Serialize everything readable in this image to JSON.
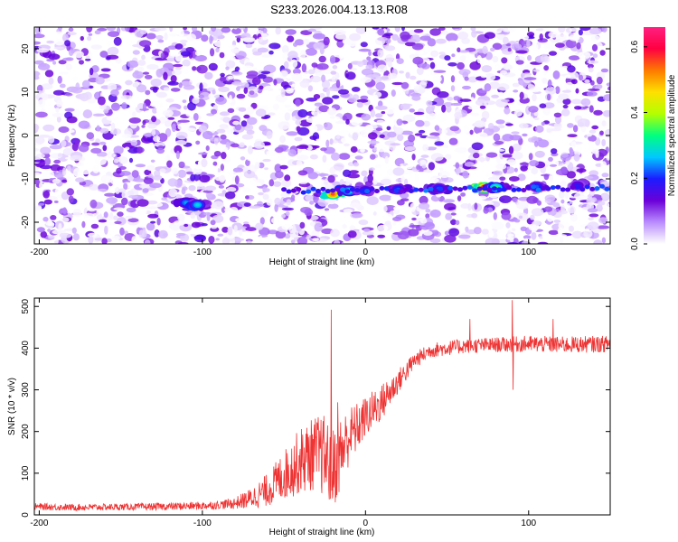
{
  "figure": {
    "title": "S233.2026.004.13.13.R08"
  },
  "chart_data": [
    {
      "type": "heatmap",
      "xlabel": "Height of straight line (km)",
      "ylabel": "Frequency (Hz)",
      "xlim": [
        -203,
        150
      ],
      "ylim": [
        -25,
        25
      ],
      "xticks": [
        -200,
        -100,
        0,
        100
      ],
      "yticks": [
        -20,
        -10,
        0,
        10,
        20
      ],
      "colorbar": {
        "label": "Normalized spectral amplitude",
        "range": [
          0.0,
          0.66
        ],
        "ticks": [
          "0.0",
          "0.2",
          "0.4",
          "0.6"
        ],
        "colors": [
          "#ffffff",
          "#b98cff",
          "#6a00d8",
          "#1c1cff",
          "#00c8ff",
          "#00ff80",
          "#b4ff00",
          "#ffe000",
          "#ff7a00",
          "#ff0040",
          "#ff2080"
        ]
      },
      "ridge": [
        {
          "x": -110,
          "y": -15.5,
          "amp": 0.25
        },
        {
          "x": -103,
          "y": -16.0,
          "amp": 0.28
        },
        {
          "x": -20,
          "y": -13.5,
          "amp": 0.55
        },
        {
          "x": -10,
          "y": -12.8,
          "amp": 0.3
        },
        {
          "x": 0,
          "y": -12.6,
          "amp": 0.2
        },
        {
          "x": 20,
          "y": -12.4,
          "amp": 0.22
        },
        {
          "x": 45,
          "y": -12.2,
          "amp": 0.22
        },
        {
          "x": 73,
          "y": -12.0,
          "amp": 0.62
        },
        {
          "x": 80,
          "y": -12.0,
          "amp": 0.35
        },
        {
          "x": 105,
          "y": -11.8,
          "amp": 0.22
        },
        {
          "x": 130,
          "y": -11.5,
          "amp": 0.18
        }
      ]
    },
    {
      "type": "line",
      "xlabel": "Height of straight line (km)",
      "ylabel": "SNR (10 * v/v)",
      "xlim": [
        -203,
        150
      ],
      "ylim": [
        0,
        520
      ],
      "xticks": [
        -200,
        -100,
        0,
        100
      ],
      "yticks": [
        0,
        100,
        200,
        300,
        400,
        500
      ],
      "color": "#ee3333",
      "x": [
        -203,
        -180,
        -150,
        -120,
        -100,
        -90,
        -80,
        -70,
        -60,
        -50,
        -40,
        -30,
        -25,
        -20,
        -15,
        -10,
        -5,
        0,
        10,
        20,
        30,
        40,
        60,
        80,
        100,
        120,
        150
      ],
      "y_median": [
        20,
        18,
        19,
        20,
        22,
        24,
        28,
        40,
        60,
        95,
        130,
        150,
        140,
        110,
        150,
        190,
        210,
        235,
        270,
        320,
        370,
        395,
        405,
        408,
        410,
        408,
        410
      ],
      "spread": [
        8,
        8,
        8,
        9,
        10,
        10,
        14,
        25,
        40,
        60,
        80,
        90,
        100,
        100,
        90,
        70,
        60,
        50,
        45,
        30,
        20,
        18,
        18,
        18,
        20,
        20,
        20
      ],
      "spikes": [
        {
          "x": -21,
          "y": 492
        },
        {
          "x": -17,
          "y": 270
        },
        {
          "x": 90,
          "y": 515
        },
        {
          "x": 90.5,
          "y": 300
        },
        {
          "x": 64,
          "y": 470
        },
        {
          "x": 115,
          "y": 470
        }
      ]
    }
  ]
}
